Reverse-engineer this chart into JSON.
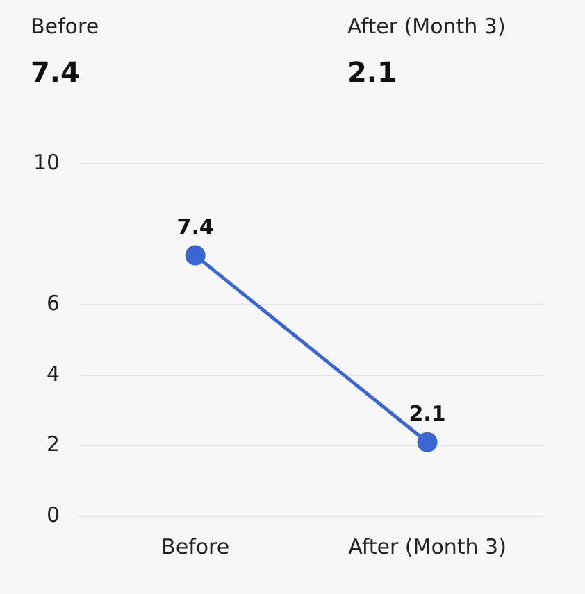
{
  "chart_data": {
    "type": "line",
    "categories": [
      "Before",
      "After (Month 3)"
    ],
    "series": [
      {
        "color": "#3a66d4",
        "values": [
          7.4,
          2.1
        ]
      }
    ],
    "annotations": [
      "Before",
      "7.4",
      "After (Month 3)",
      "2.1"
    ],
    "ylim": [
      0,
      10
    ],
    "yticks": [
      0,
      2,
      4,
      6,
      10
    ],
    "grid": "y",
    "legend": false,
    "marker": "circle",
    "line_style": "solid",
    "data_labels": true
  }
}
